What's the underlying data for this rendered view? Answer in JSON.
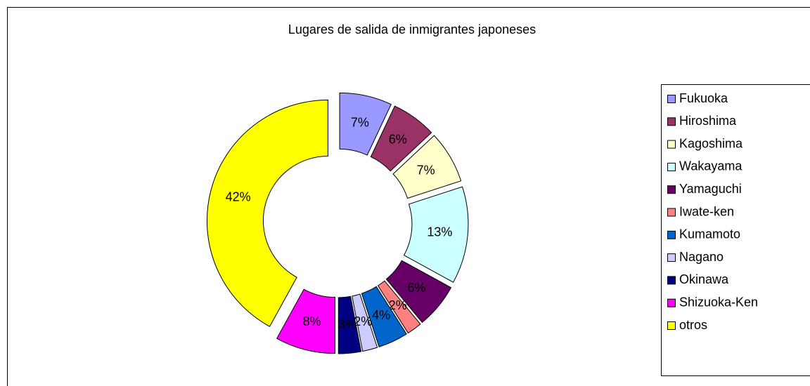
{
  "chart_data": {
    "type": "donut",
    "title": "Lugares de salida de inmigrantes japoneses",
    "categories": [
      "Fukuoka",
      "Hiroshima",
      "Kagoshima",
      "Wakayama",
      "Yamaguchi",
      "Iwate-ken",
      "Kumamoto",
      "Nagano",
      "Okinawa",
      "Shizuoka-Ken",
      "otros"
    ],
    "values": [
      7,
      6,
      7,
      13,
      6,
      2,
      4,
      2,
      3,
      8,
      42
    ],
    "value_labels": [
      "7%",
      "6%",
      "7%",
      "13%",
      "6%",
      "2%",
      "4%",
      "2%",
      "3%",
      "8%",
      "42%"
    ],
    "colors": [
      "#9999ff",
      "#993366",
      "#ffffcc",
      "#ccffff",
      "#660066",
      "#ff8080",
      "#0066cc",
      "#ccccff",
      "#000080",
      "#ff00ff",
      "#ffff00"
    ],
    "legend": "right"
  }
}
